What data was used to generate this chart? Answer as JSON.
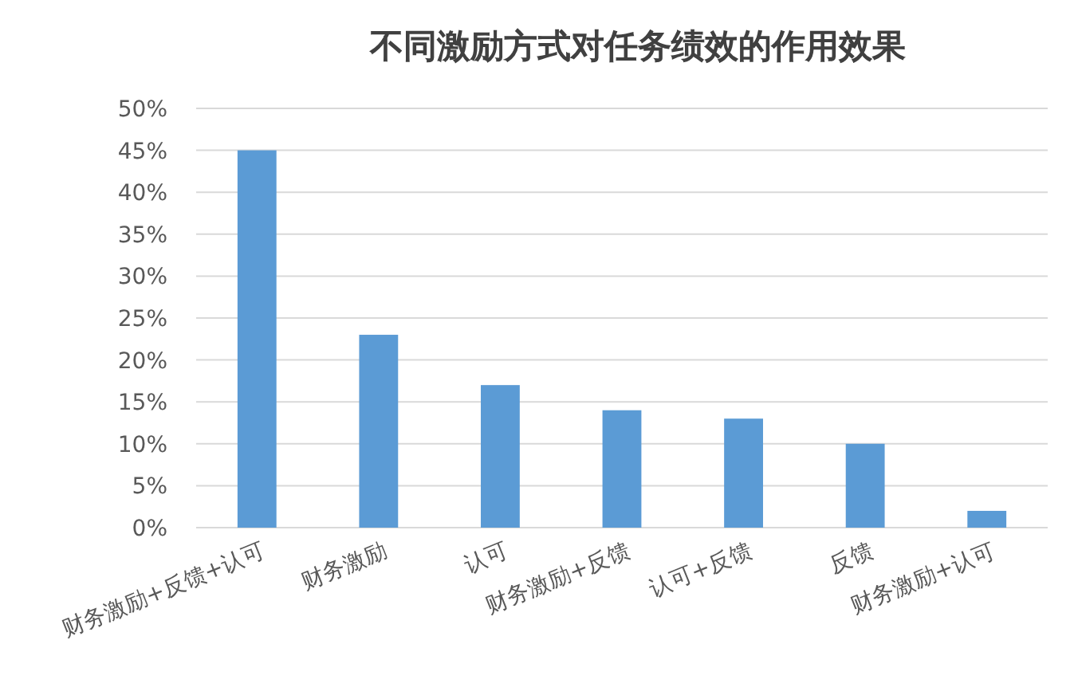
{
  "chart_data": {
    "type": "bar",
    "title": "不同激励方式对任务绩效的作用效果",
    "categories": [
      "财务激励+反馈+认可",
      "财务激励",
      "认可",
      "财务激励+反馈",
      "认可+反馈",
      "反馈",
      "财务激励+认可"
    ],
    "values": [
      45,
      23,
      17,
      14,
      13,
      10,
      2
    ],
    "color": "#5b9bd5",
    "ylim": [
      0,
      50
    ],
    "yticks": [
      {
        "value": 0,
        "label": "0%"
      },
      {
        "value": 5,
        "label": "5%"
      },
      {
        "value": 10,
        "label": "10%"
      },
      {
        "value": 15,
        "label": "15%"
      },
      {
        "value": 20,
        "label": "20%"
      },
      {
        "value": 25,
        "label": "25%"
      },
      {
        "value": 30,
        "label": "30%"
      },
      {
        "value": 35,
        "label": "35%"
      },
      {
        "value": 40,
        "label": "40%"
      },
      {
        "value": 45,
        "label": "45%"
      },
      {
        "value": 50,
        "label": "50%"
      }
    ],
    "grid": "y"
  }
}
